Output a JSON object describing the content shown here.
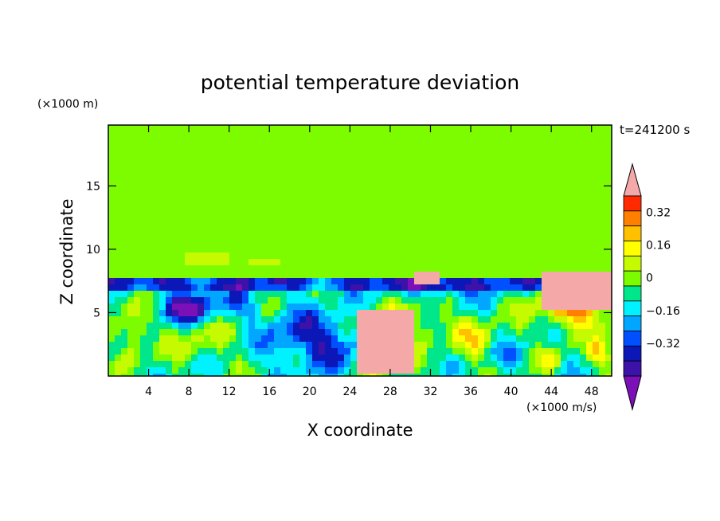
{
  "chart_data": {
    "type": "heatmap",
    "title": "potential temperature deviation",
    "xlabel": "X coordinate",
    "ylabel": "Z coordinate",
    "x_unit": "(×1000 m/s)",
    "y_unit": "(×1000 m)",
    "time_label": "t=241200 s",
    "x_range": [
      0,
      50
    ],
    "y_range": [
      0,
      19.8
    ],
    "x_ticks": [
      4,
      8,
      12,
      16,
      20,
      24,
      28,
      32,
      36,
      40,
      44,
      48
    ],
    "y_ticks": [
      5,
      10,
      15
    ],
    "colorbar": {
      "levels": [
        -0.48,
        -0.4,
        -0.32,
        -0.24,
        -0.16,
        -0.08,
        0,
        0.08,
        0.16,
        0.24,
        0.32,
        0.4
      ],
      "colors": [
        "#7b0fb8",
        "#3c12a8",
        "#0c17b8",
        "#0050ff",
        "#00a6ff",
        "#00f2ff",
        "#00e68a",
        "#7dfc00",
        "#c6fa00",
        "#ffff00",
        "#ffc000",
        "#ff8000",
        "#ff2a00",
        "#f4a8a8"
      ],
      "tick_values": [
        -0.32,
        -0.16,
        0,
        0.16,
        0.32
      ],
      "tick_labels": [
        "−0.32",
        "−0.16",
        "0",
        "0.16",
        "0.32"
      ]
    },
    "regions": [
      {
        "label": "upper layer near zero",
        "value": 0.02,
        "x": [
          0,
          50
        ],
        "y": [
          8,
          19.8
        ]
      },
      {
        "label": "upper plume slightly positive",
        "value": 0.06,
        "x": [
          7.8,
          37
        ],
        "y": [
          8,
          19.8
        ]
      },
      {
        "label": "strong negative layer",
        "value": -0.4,
        "x": [
          0,
          40
        ],
        "y": [
          6.5,
          8
        ]
      },
      {
        "label": "positive warm patch right",
        "value": 0.45,
        "x": [
          43,
          50
        ],
        "y": [
          4,
          8
        ]
      },
      {
        "label": "negative core left",
        "value": -0.48,
        "x": [
          4.5,
          11
        ],
        "y": [
          4.2,
          6.8
        ]
      },
      {
        "label": "warm bubble",
        "value": 0.42,
        "x": [
          25,
          30
        ],
        "y": [
          0,
          5
        ]
      }
    ]
  }
}
